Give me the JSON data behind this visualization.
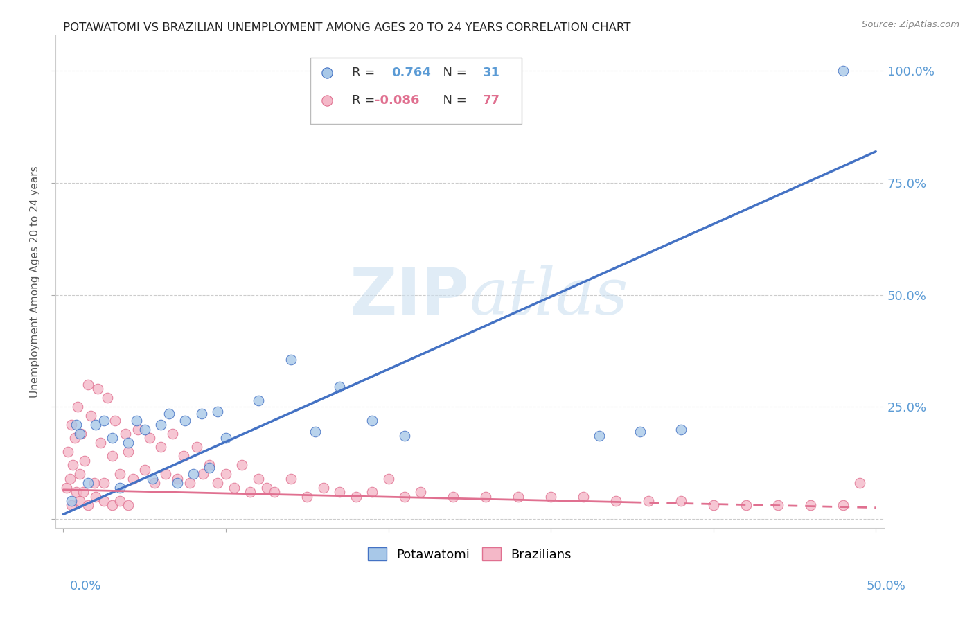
{
  "title": "POTAWATOMI VS BRAZILIAN UNEMPLOYMENT AMONG AGES 20 TO 24 YEARS CORRELATION CHART",
  "source": "Source: ZipAtlas.com",
  "ylabel": "Unemployment Among Ages 20 to 24 years",
  "xlim": [
    0.0,
    0.5
  ],
  "ylim": [
    0.0,
    1.05
  ],
  "watermark": "ZIPatlas",
  "legend_blue_r": "0.764",
  "legend_blue_n": "31",
  "legend_pink_r": "-0.086",
  "legend_pink_n": "77",
  "blue_color": "#a8c8e8",
  "pink_color": "#f4b8c8",
  "blue_line_color": "#4472c4",
  "pink_line_color": "#e07090",
  "blue_line_x0": 0.0,
  "blue_line_y0": 0.01,
  "blue_line_x1": 0.5,
  "blue_line_y1": 0.82,
  "pink_line_x0": 0.0,
  "pink_line_y0": 0.065,
  "pink_line_x1": 0.5,
  "pink_line_y1": 0.025,
  "potawatomi_x": [
    0.005,
    0.008,
    0.01,
    0.015,
    0.02,
    0.025,
    0.03,
    0.035,
    0.04,
    0.045,
    0.05,
    0.055,
    0.06,
    0.065,
    0.07,
    0.075,
    0.08,
    0.085,
    0.09,
    0.095,
    0.1,
    0.12,
    0.14,
    0.155,
    0.17,
    0.19,
    0.21,
    0.33,
    0.355,
    0.38,
    0.48
  ],
  "potawatomi_y": [
    0.04,
    0.21,
    0.19,
    0.08,
    0.21,
    0.22,
    0.18,
    0.07,
    0.17,
    0.22,
    0.2,
    0.09,
    0.21,
    0.235,
    0.08,
    0.22,
    0.1,
    0.235,
    0.115,
    0.24,
    0.18,
    0.265,
    0.355,
    0.195,
    0.295,
    0.22,
    0.185,
    0.185,
    0.195,
    0.2,
    1.0
  ],
  "brazilian_x": [
    0.002,
    0.003,
    0.004,
    0.005,
    0.006,
    0.007,
    0.008,
    0.009,
    0.01,
    0.011,
    0.012,
    0.013,
    0.015,
    0.017,
    0.019,
    0.021,
    0.023,
    0.025,
    0.027,
    0.03,
    0.032,
    0.035,
    0.038,
    0.04,
    0.043,
    0.046,
    0.05,
    0.053,
    0.056,
    0.06,
    0.063,
    0.067,
    0.07,
    0.074,
    0.078,
    0.082,
    0.086,
    0.09,
    0.095,
    0.1,
    0.105,
    0.11,
    0.115,
    0.12,
    0.125,
    0.13,
    0.14,
    0.15,
    0.16,
    0.17,
    0.18,
    0.19,
    0.2,
    0.21,
    0.22,
    0.24,
    0.26,
    0.28,
    0.3,
    0.32,
    0.34,
    0.36,
    0.38,
    0.4,
    0.42,
    0.44,
    0.46,
    0.48,
    0.49,
    0.005,
    0.01,
    0.015,
    0.02,
    0.025,
    0.03,
    0.035,
    0.04
  ],
  "brazilian_y": [
    0.07,
    0.15,
    0.09,
    0.21,
    0.12,
    0.18,
    0.06,
    0.25,
    0.1,
    0.19,
    0.06,
    0.13,
    0.3,
    0.23,
    0.08,
    0.29,
    0.17,
    0.08,
    0.27,
    0.14,
    0.22,
    0.1,
    0.19,
    0.15,
    0.09,
    0.2,
    0.11,
    0.18,
    0.08,
    0.16,
    0.1,
    0.19,
    0.09,
    0.14,
    0.08,
    0.16,
    0.1,
    0.12,
    0.08,
    0.1,
    0.07,
    0.12,
    0.06,
    0.09,
    0.07,
    0.06,
    0.09,
    0.05,
    0.07,
    0.06,
    0.05,
    0.06,
    0.09,
    0.05,
    0.06,
    0.05,
    0.05,
    0.05,
    0.05,
    0.05,
    0.04,
    0.04,
    0.04,
    0.03,
    0.03,
    0.03,
    0.03,
    0.03,
    0.08,
    0.03,
    0.04,
    0.03,
    0.05,
    0.04,
    0.03,
    0.04,
    0.03
  ]
}
